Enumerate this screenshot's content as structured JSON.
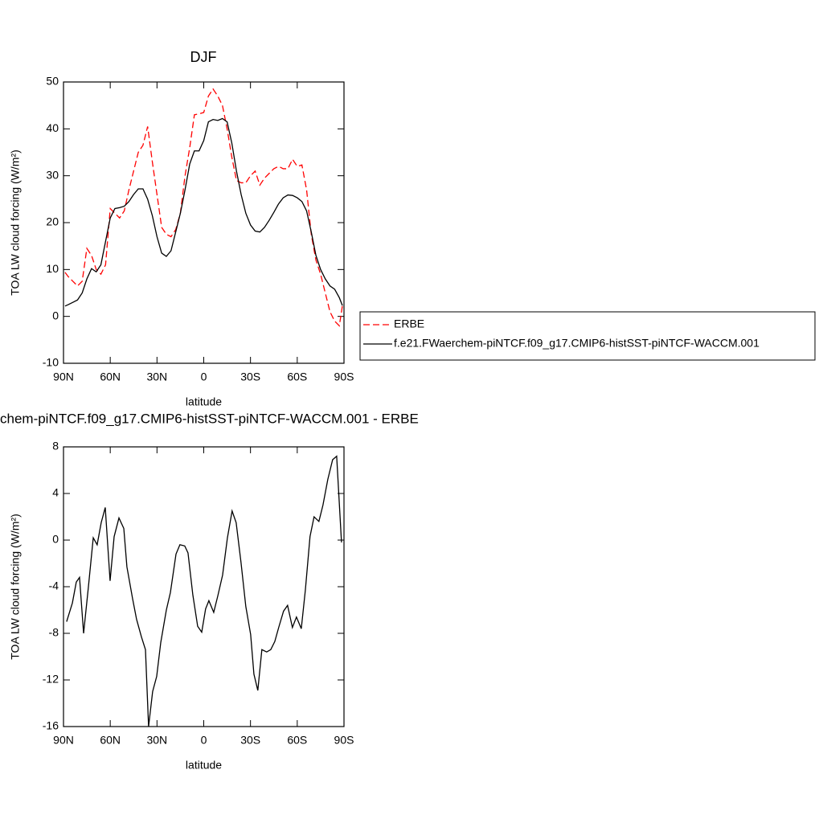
{
  "chart_data": [
    {
      "type": "line",
      "title": "DJF",
      "x_label": "latitude",
      "y_label": "TOA LW cloud forcing (W/m²)",
      "xlim": [
        90,
        -90
      ],
      "ylim": [
        -10,
        50
      ],
      "xticks": [
        {
          "value": 90,
          "label": "90N"
        },
        {
          "value": 60,
          "label": "60N"
        },
        {
          "value": 30,
          "label": "30N"
        },
        0,
        {
          "value": -30,
          "label": "30S"
        },
        {
          "value": -60,
          "label": "60S"
        },
        {
          "value": -90,
          "label": "90S"
        }
      ],
      "yticks": [
        -10,
        0,
        10,
        20,
        30,
        40,
        50
      ],
      "legend": "outside-right",
      "x": [
        89,
        87,
        84,
        81,
        78,
        75,
        72,
        69,
        66,
        63,
        60,
        57,
        54,
        51,
        48,
        45,
        42,
        39,
        36,
        33,
        30,
        27,
        24,
        21,
        18,
        15,
        12,
        9,
        6,
        3,
        0,
        -3,
        -6,
        -9,
        -12,
        -15,
        -18,
        -21,
        -24,
        -27,
        -30,
        -33,
        -36,
        -39,
        -42,
        -45,
        -48,
        -51,
        -54,
        -57,
        -60,
        -63,
        -66,
        -69,
        -72,
        -75,
        -78,
        -81,
        -84,
        -87,
        -89
      ],
      "series": [
        {
          "name": "ERBE",
          "color": "#ff0000",
          "linestyle": "dashed",
          "values": [
            9.4,
            8.5,
            7.5,
            6.5,
            7.5,
            14.5,
            13,
            10,
            9,
            11,
            23,
            22,
            21,
            22.5,
            27,
            31,
            35,
            36.5,
            40.5,
            33,
            26,
            19,
            17.5,
            17,
            18.5,
            22,
            30,
            36,
            43,
            43.2,
            43.5,
            47,
            48.5,
            47,
            45,
            40,
            34,
            29,
            28.5,
            28.5,
            30,
            31,
            28,
            29.5,
            30.5,
            31.5,
            32,
            31.5,
            31.5,
            33.5,
            32,
            32.3,
            27,
            17.5,
            12,
            9,
            5,
            1,
            -1,
            -2,
            2.3
          ]
        },
        {
          "name": "f.e21.FWaerchem-piNTCF.f09_g17.CMIP6-histSST-piNTCF-WACCM.001",
          "color": "#000000",
          "linestyle": "solid",
          "values": [
            2.2,
            2.5,
            3,
            3.5,
            5,
            8,
            10.2,
            9.5,
            11,
            16,
            21,
            23,
            23.2,
            23.5,
            24.5,
            26,
            27.2,
            27.2,
            25,
            21.5,
            17,
            13.5,
            12.8,
            14,
            18,
            22,
            27,
            32.5,
            35.3,
            35.3,
            37.5,
            41.5,
            42,
            41.8,
            42.2,
            41.5,
            37,
            31,
            26,
            22,
            19.5,
            18.2,
            18,
            19,
            20.5,
            22.2,
            24,
            25.3,
            25.9,
            25.8,
            25.3,
            24.5,
            22.5,
            18,
            13,
            10,
            8,
            6.5,
            5.8,
            4,
            2.3
          ]
        }
      ]
    },
    {
      "type": "line",
      "title": "chem-piNTCF.f09_g17.CMIP6-histSST-piNTCF-WACCM.001 - ERBE",
      "x_label": "latitude",
      "y_label": "TOA LW cloud forcing (W/m²)",
      "xlim": [
        90,
        -90
      ],
      "ylim": [
        -16,
        8
      ],
      "xticks": [
        {
          "value": 90,
          "label": "90N"
        },
        {
          "value": 60,
          "label": "60N"
        },
        {
          "value": 30,
          "label": "30N"
        },
        0,
        {
          "value": -30,
          "label": "30S"
        },
        {
          "value": -60,
          "label": "60S"
        },
        {
          "value": -90,
          "label": "90S"
        }
      ],
      "yticks": [
        -16,
        -12,
        -8,
        -4,
        0,
        4,
        8
      ],
      "color": "#000000",
      "x": [
        88,
        84.3,
        81.8,
        79.7,
        77.1,
        74,
        70.9,
        68.4,
        65.8,
        63.2,
        60.1,
        57.5,
        54.4,
        51.3,
        49.3,
        45.7,
        43.1,
        40,
        37.4,
        35.4,
        32.8,
        30.2,
        27.6,
        24,
        21.4,
        17.8,
        15.3,
        12.2,
        10.1,
        7,
        3.9,
        1.3,
        -1.2,
        -3.3,
        -6.4,
        -9,
        -12.1,
        -15.2,
        -18.2,
        -20.8,
        -23.9,
        -27,
        -30.1,
        -32.2,
        -34.7,
        -37.3,
        -40.4,
        -43,
        -45.6,
        -48.1,
        -51.2,
        -53.8,
        -56.9,
        -59.5,
        -62.6,
        -65.2,
        -68.2,
        -70.8,
        -73.9,
        -76.5,
        -79.6,
        -82.7,
        -85.3,
        -88.4
      ],
      "values": [
        -7,
        -5.4,
        -3.6,
        -3.2,
        -8,
        -4,
        0.2,
        -0.4,
        1.5,
        2.8,
        -3.5,
        0.3,
        1.9,
        1,
        -2.3,
        -5,
        -6.8,
        -8.3,
        -9.4,
        -16,
        -13,
        -11.7,
        -8.8,
        -6,
        -4.5,
        -1.2,
        -0.4,
        -0.5,
        -1.1,
        -4.7,
        -7.4,
        -7.9,
        -5.9,
        -5.2,
        -6.2,
        -4.8,
        -3,
        0.2,
        2.5,
        1.5,
        -1.9,
        -5.7,
        -8.1,
        -11.5,
        -12.9,
        -9.4,
        -9.6,
        -9.4,
        -8.7,
        -7.5,
        -6.1,
        -5.6,
        -7.5,
        -6.6,
        -7.6,
        -4.3,
        0.3,
        2,
        1.6,
        3,
        5.2,
        6.9,
        7.2,
        -0.2
      ]
    }
  ]
}
